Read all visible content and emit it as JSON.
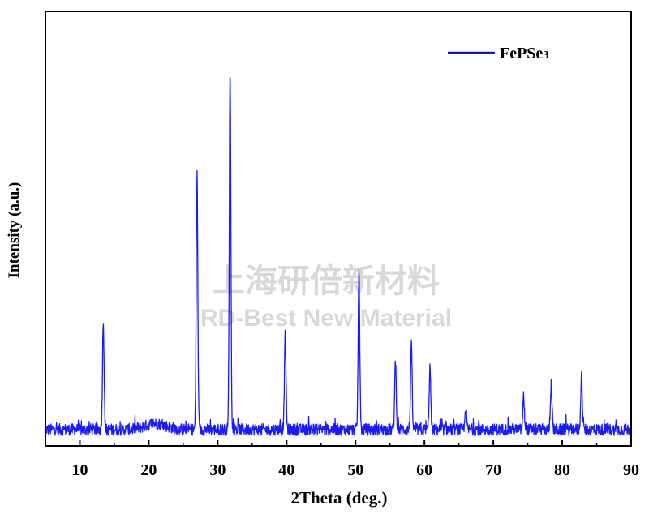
{
  "chart_data": {
    "type": "line",
    "xlabel": "2Theta (deg.)",
    "ylabel": "Intensity (a.u.)",
    "xlim": [
      5,
      90
    ],
    "ylim": [
      0,
      100
    ],
    "xticks": [
      10,
      20,
      30,
      40,
      50,
      60,
      70,
      80,
      90
    ],
    "y_tick_labels": false,
    "grid": false,
    "legend_position": "top-right",
    "series": [
      {
        "name": "FePSe3",
        "color": "#1a1aff",
        "legend_color": "#1a1a9e",
        "baseline": 2,
        "peaks": [
          {
            "x": 13.4,
            "y": 30
          },
          {
            "x": 27.0,
            "y": 70
          },
          {
            "x": 31.8,
            "y": 100
          },
          {
            "x": 39.8,
            "y": 26
          },
          {
            "x": 50.5,
            "y": 44
          },
          {
            "x": 55.8,
            "y": 19
          },
          {
            "x": 58.1,
            "y": 23
          },
          {
            "x": 60.8,
            "y": 17
          },
          {
            "x": 66.0,
            "y": 6
          },
          {
            "x": 74.4,
            "y": 9
          },
          {
            "x": 78.4,
            "y": 13
          },
          {
            "x": 82.8,
            "y": 15
          }
        ]
      }
    ]
  },
  "legend": {
    "label": "FePSe",
    "subscript": "3"
  },
  "watermark": {
    "chinese": "上海研倍新材料",
    "english": "RD-Best New Material"
  }
}
